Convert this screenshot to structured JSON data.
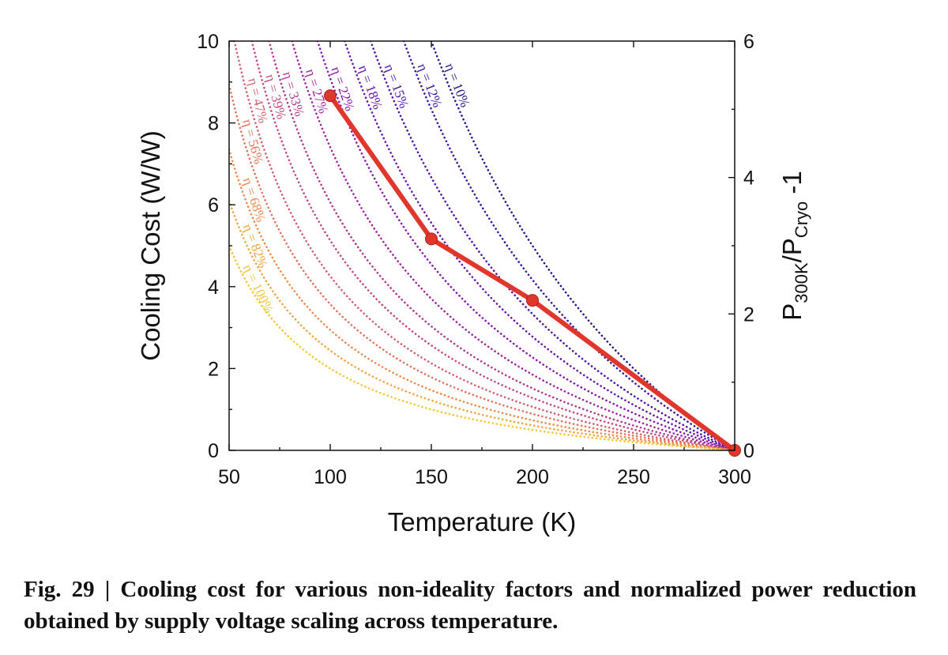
{
  "caption": {
    "label": "Fig. 29",
    "separator": "|",
    "text": "Cooling cost for various non-ideality factors and normalized power reduction obtained by supply voltage scaling across temperature."
  },
  "chart_data": {
    "type": "line",
    "title": "",
    "xlabel": "Temperature (K)",
    "ylabel": "Cooling Cost (W/W)",
    "y2label": "P300K/PCryo -1",
    "y2label_parts": {
      "base": "P",
      "sub1": "300K",
      "slash": "/",
      "base2": "P",
      "sub2": "Cryo",
      "tail": " -1"
    },
    "xlim": [
      50,
      300
    ],
    "ylim": [
      0,
      10
    ],
    "y2lim": [
      0,
      6
    ],
    "xticks": [
      50,
      100,
      150,
      200,
      250,
      300
    ],
    "yticks": [
      0,
      2,
      4,
      6,
      8,
      10
    ],
    "y2ticks": [
      0,
      2,
      4,
      6
    ],
    "grid": false,
    "legend": "none",
    "cooling_cost_formula": "(300 - T) / (eta * T)",
    "series": [
      {
        "axis": "left",
        "style": "dotted",
        "eta": 0.1,
        "label": "η = 10%",
        "color": "#1f1a8c"
      },
      {
        "axis": "left",
        "style": "dotted",
        "eta": 0.12,
        "label": "η = 12%",
        "color": "#3a169c"
      },
      {
        "axis": "left",
        "style": "dotted",
        "eta": 0.15,
        "label": "η = 15%",
        "color": "#4e12a8"
      },
      {
        "axis": "left",
        "style": "dotted",
        "eta": 0.18,
        "label": "η = 18%",
        "color": "#6a14ac"
      },
      {
        "axis": "left",
        "style": "dotted",
        "eta": 0.22,
        "label": "η = 22%",
        "color": "#8519a8"
      },
      {
        "axis": "left",
        "style": "dotted",
        "eta": 0.27,
        "label": "η = 27%",
        "color": "#9e259e"
      },
      {
        "axis": "left",
        "style": "dotted",
        "eta": 0.33,
        "label": "η = 33%",
        "color": "#b23790"
      },
      {
        "axis": "left",
        "style": "dotted",
        "eta": 0.39,
        "label": "η = 39%",
        "color": "#c34a80"
      },
      {
        "axis": "left",
        "style": "dotted",
        "eta": 0.47,
        "label": "η = 47%",
        "color": "#d35e6e"
      },
      {
        "axis": "left",
        "style": "dotted",
        "eta": 0.56,
        "label": "η = 56%",
        "color": "#e0735c"
      },
      {
        "axis": "left",
        "style": "dotted",
        "eta": 0.68,
        "label": "η = 68%",
        "color": "#ea8a4c"
      },
      {
        "axis": "left",
        "style": "dotted",
        "eta": 0.82,
        "label": "η = 82%",
        "color": "#f2a43e"
      },
      {
        "axis": "left",
        "style": "dotted",
        "eta": 1.0,
        "label": "η = 100%",
        "color": "#f6c63a"
      }
    ],
    "power_reduction": {
      "axis": "right",
      "style": "solid-markers",
      "color": "#e0362c",
      "x": [
        100,
        150,
        200,
        300
      ],
      "y": [
        5.2,
        3.1,
        2.2,
        0
      ]
    }
  }
}
